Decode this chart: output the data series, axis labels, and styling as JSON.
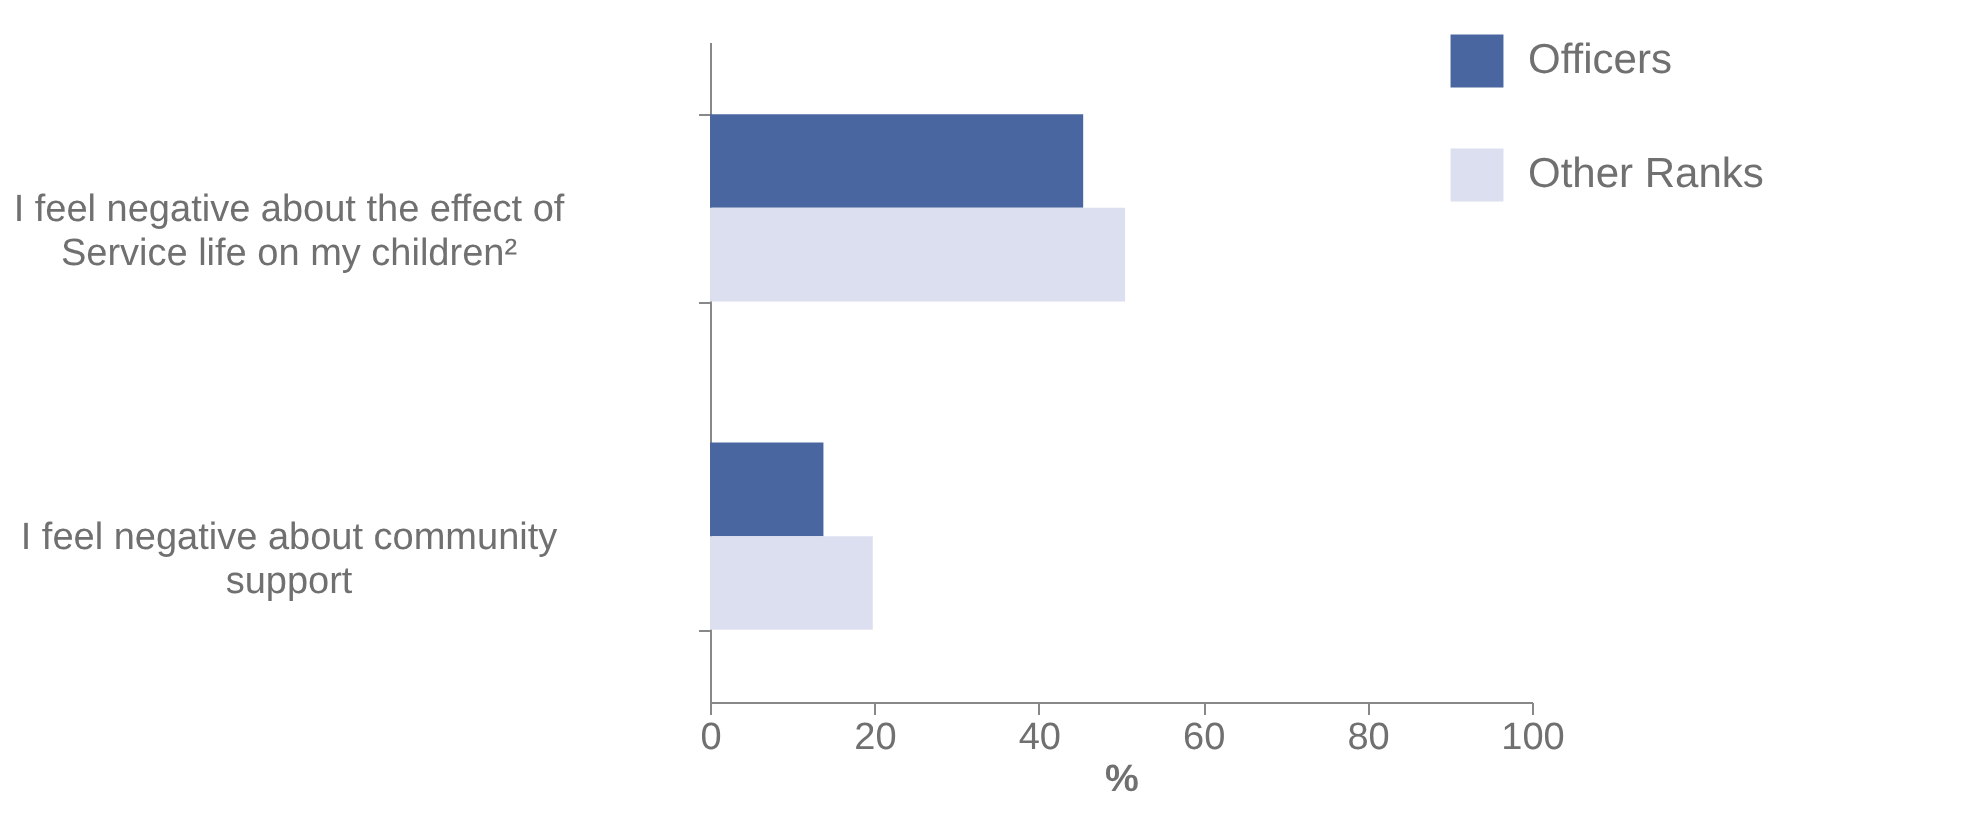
{
  "chart_data": {
    "type": "bar",
    "orientation": "horizontal",
    "xlabel": "%",
    "categories": [
      "I feel negative about the effect of Service life on my children²",
      "I feel negative about community support"
    ],
    "series": [
      {
        "name": "Officers",
        "color": "#4a66a0",
        "values": [
          45.4,
          13.8
        ]
      },
      {
        "name": "Other Ranks",
        "color": "#dcdff0",
        "values": [
          50.5,
          19.8
        ]
      }
    ],
    "xlim": [
      0,
      100
    ],
    "xticks": [
      0,
      20,
      40,
      60,
      80,
      100
    ],
    "grid": false,
    "legend": "top right"
  }
}
